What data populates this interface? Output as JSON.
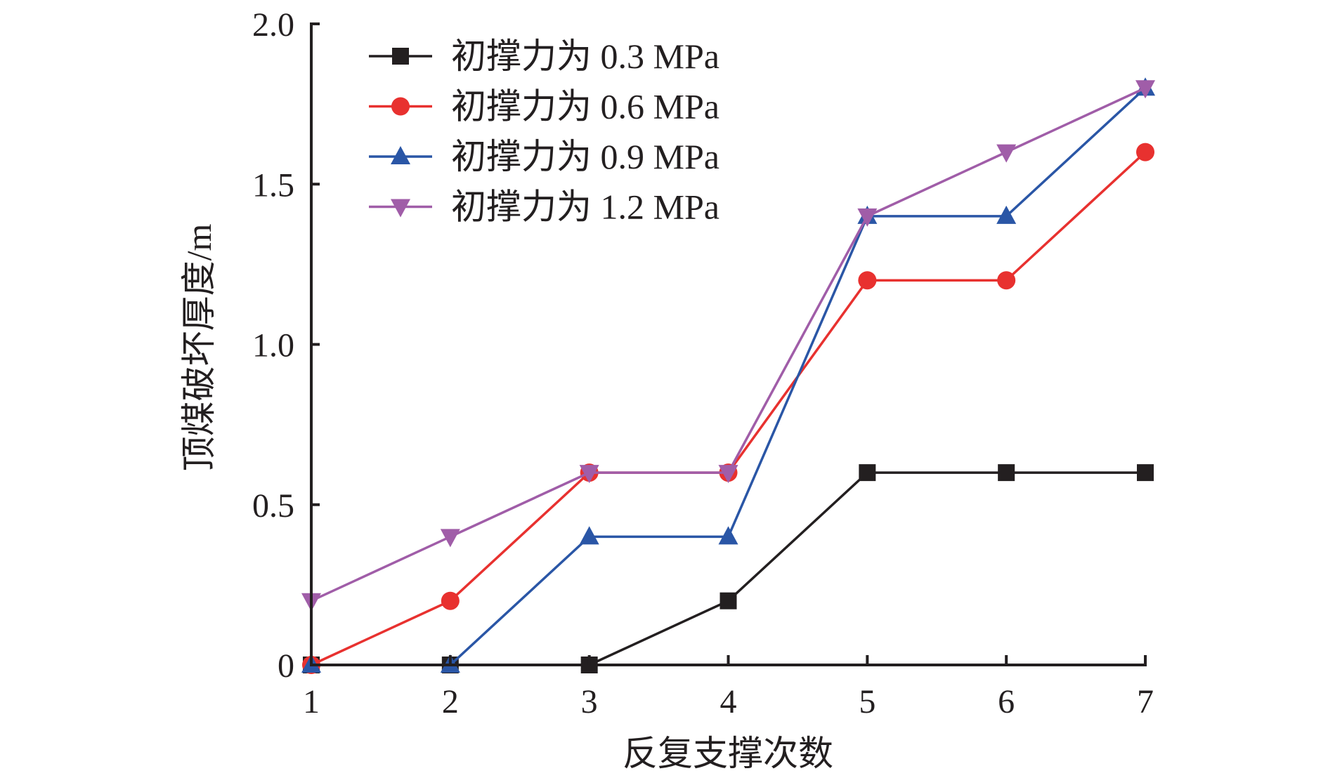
{
  "chart_data": {
    "type": "line",
    "title": "",
    "xlabel": "反复支撑次数",
    "ylabel": "顶煤破坏厚度/m",
    "x": [
      1,
      2,
      3,
      4,
      5,
      6,
      7
    ],
    "xlim": [
      1,
      7
    ],
    "ylim": [
      0,
      2.0
    ],
    "xticks": [
      "1",
      "2",
      "3",
      "4",
      "5",
      "6",
      "7"
    ],
    "yticks": [
      {
        "value": 0,
        "label": "0"
      },
      {
        "value": 0.5,
        "label": "0.5"
      },
      {
        "value": 1.0,
        "label": "1.0"
      },
      {
        "value": 1.5,
        "label": "1.5"
      },
      {
        "value": 2.0,
        "label": "2.0"
      }
    ],
    "grid": false,
    "legend_position": "top-left",
    "series": [
      {
        "name": "初撑力为 0.3 MPa",
        "color": "#231f20",
        "marker": "square",
        "values": [
          0,
          0,
          0,
          0.2,
          0.6,
          0.6,
          0.6
        ]
      },
      {
        "name": "初撑力为 0.6 MPa",
        "color": "#e8312f",
        "marker": "circle",
        "values": [
          0,
          0.2,
          0.6,
          0.6,
          1.2,
          1.2,
          1.6
        ]
      },
      {
        "name": "初撑力为 0.9 MPa",
        "color": "#2a56a6",
        "marker": "triangle-up",
        "values": [
          0,
          0,
          0.4,
          0.4,
          1.4,
          1.4,
          1.8
        ]
      },
      {
        "name": "初撑力为 1.2 MPa",
        "color": "#a05da8",
        "marker": "triangle-down",
        "values": [
          0.2,
          0.4,
          0.6,
          0.6,
          1.4,
          1.6,
          1.8
        ]
      }
    ]
  }
}
